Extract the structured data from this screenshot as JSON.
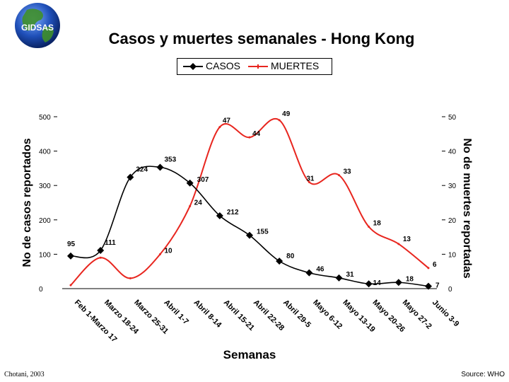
{
  "logo": {
    "text": "GIDSAS"
  },
  "title": "Casos y muertes semanales - Hong Kong",
  "footer": {
    "author": "Chotani, 2003",
    "source": "Source: WHO"
  },
  "chart_data": {
    "type": "line",
    "title": "Casos y muertes semanales - Hong Kong",
    "xlabel": "Semanas",
    "ylabel": "No de casos reportados",
    "y2label": "No de muertes reportadas",
    "categories": [
      "Feb 1-Marzo 17",
      "Marzo 18-24",
      "Marzo 25-31",
      "Abril 1-7",
      "Abril 8-14",
      "Abril 15-21",
      "Abril 22-28",
      "Abril 29-5",
      "Mayo 6-12",
      "Mayo 13-19",
      "Mayo 20-26",
      "Mayo 27-2",
      "Junio 3-9"
    ],
    "ylim": [
      0,
      500
    ],
    "y2lim": [
      0,
      50
    ],
    "yticks": [
      "0",
      "100",
      "200",
      "300",
      "400",
      "500"
    ],
    "y2ticks": [
      "0",
      "10",
      "20",
      "30",
      "40",
      "50"
    ],
    "legend_position": "top-center",
    "grid": false,
    "series": [
      {
        "name": "CASOS",
        "axis": "left",
        "color": "#000000",
        "marker": "diamond",
        "values": [
          95,
          111,
          324,
          353,
          307,
          212,
          155,
          80,
          46,
          31,
          14,
          18,
          7
        ],
        "labels": [
          "95",
          "111",
          "324",
          "353",
          "307",
          "212",
          "155",
          "80",
          "46",
          "31",
          "14",
          "18",
          "7"
        ]
      },
      {
        "name": "MUERTES",
        "axis": "right",
        "color": "#e8261f",
        "marker": "none",
        "values": [
          1,
          9,
          3,
          10,
          24,
          47,
          44,
          49,
          31,
          33,
          18,
          13,
          6
        ],
        "labels": [
          "",
          "",
          "",
          "10",
          "24",
          "47",
          "44",
          "49",
          "31",
          "33",
          "18",
          "13",
          "6"
        ]
      }
    ]
  }
}
